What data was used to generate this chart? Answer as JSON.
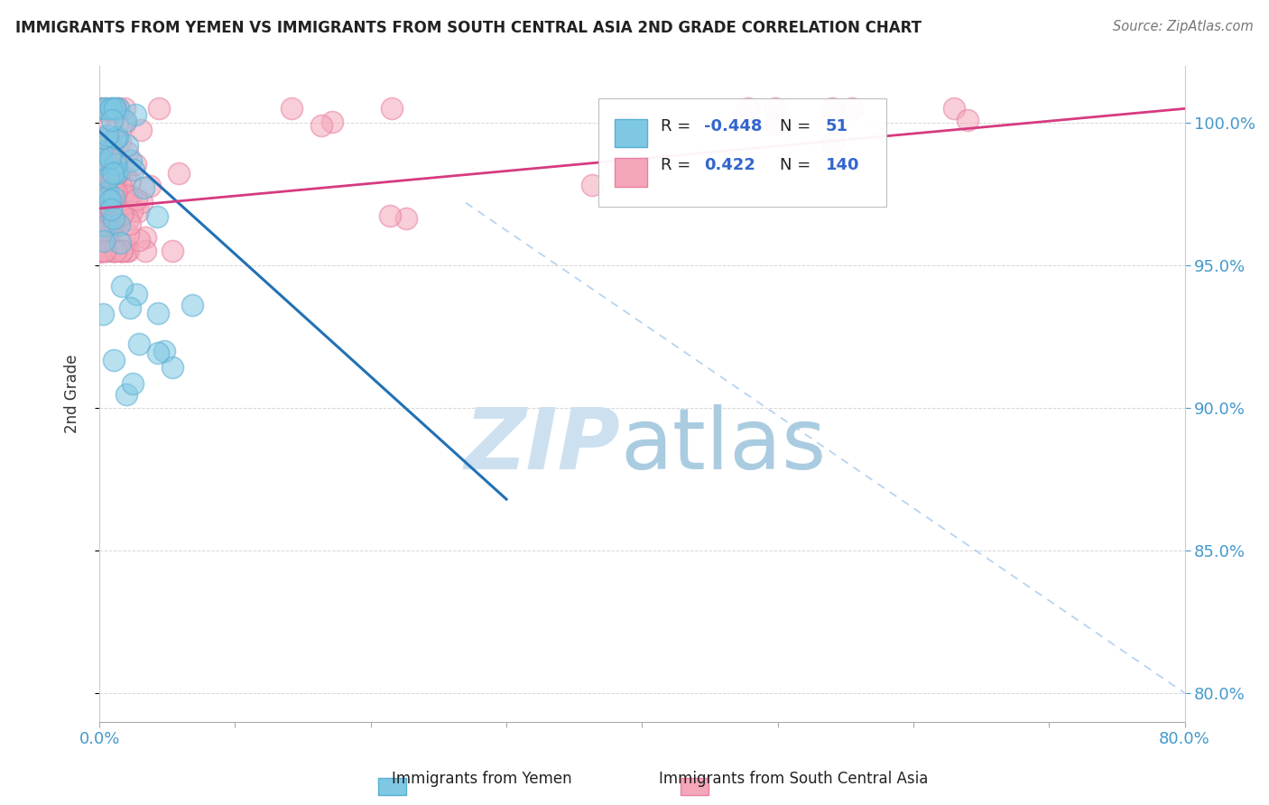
{
  "title": "IMMIGRANTS FROM YEMEN VS IMMIGRANTS FROM SOUTH CENTRAL ASIA 2ND GRADE CORRELATION CHART",
  "source": "Source: ZipAtlas.com",
  "ylabel": "2nd Grade",
  "right_ytick_vals": [
    0.8,
    0.85,
    0.9,
    0.95,
    1.0
  ],
  "right_ytick_labels": [
    "80.0%",
    "85.0%",
    "90.0%",
    "95.0%",
    "100.0%"
  ],
  "xlim": [
    0.0,
    0.8
  ],
  "ylim": [
    0.79,
    1.02
  ],
  "series1_color": "#7ec8e3",
  "series2_color": "#f4a7b9",
  "series1_edge": "#5aafd4",
  "series2_edge": "#e87fa0",
  "series1_label": "Immigrants from Yemen",
  "series2_label": "Immigrants from South Central Asia",
  "background_color": "#ffffff",
  "grid_color": "#cccccc",
  "trend1_color": "#2171b5",
  "trend2_color": "#d63b80",
  "diag_color": "#aaccee",
  "title_color": "#222222",
  "axis_tick_color": "#4499cc",
  "legend_r_color": "#222222",
  "legend_n_color": "#3366cc",
  "watermark_zip_color": "#cce0f0",
  "watermark_atlas_color": "#aacce0"
}
